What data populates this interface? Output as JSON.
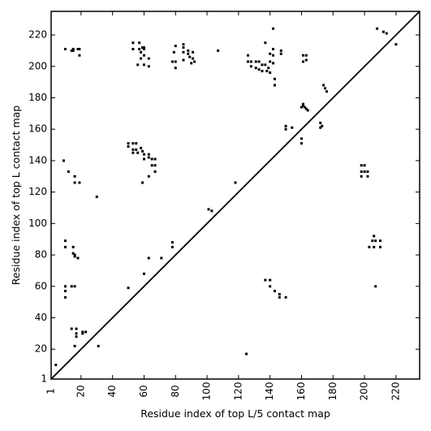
{
  "chart_data": {
    "type": "scatter",
    "title": "",
    "xlabel": "Residue index of top L/5 contact map",
    "ylabel": "Residue index of top L contact map",
    "xlim": [
      1,
      235
    ],
    "ylim": [
      1,
      235
    ],
    "x_ticks": [
      1,
      20,
      40,
      60,
      80,
      100,
      120,
      140,
      160,
      180,
      200,
      220
    ],
    "y_ticks": [
      1,
      20,
      40,
      60,
      80,
      100,
      120,
      140,
      160,
      180,
      200,
      220
    ],
    "grid": false,
    "legend": "none",
    "marker_color": "#000000",
    "diagonal": [
      [
        1,
        1
      ],
      [
        235,
        235
      ]
    ],
    "series": [
      {
        "values": [
          [
            10,
            211
          ],
          [
            14,
            210
          ],
          [
            15,
            210
          ],
          [
            15,
            211
          ],
          [
            18,
            211
          ],
          [
            19,
            207
          ],
          [
            19,
            211
          ],
          [
            53,
            215
          ],
          [
            53,
            211
          ],
          [
            57,
            215
          ],
          [
            57,
            211
          ],
          [
            59,
            212
          ],
          [
            60,
            212
          ],
          [
            60,
            211
          ],
          [
            58,
            209
          ],
          [
            58,
            205
          ],
          [
            60,
            207
          ],
          [
            56,
            201
          ],
          [
            60,
            201
          ],
          [
            63,
            205
          ],
          [
            63,
            200
          ],
          [
            78,
            203
          ],
          [
            80,
            203
          ],
          [
            79,
            209
          ],
          [
            80,
            213
          ],
          [
            80,
            199
          ],
          [
            85,
            214
          ],
          [
            85,
            212
          ],
          [
            85,
            209
          ],
          [
            85,
            204
          ],
          [
            88,
            210
          ],
          [
            88,
            208
          ],
          [
            89,
            206
          ],
          [
            91,
            209
          ],
          [
            91,
            205
          ],
          [
            92,
            203
          ],
          [
            90,
            202
          ],
          [
            107,
            210
          ],
          [
            126,
            207
          ],
          [
            126,
            203
          ],
          [
            128,
            203
          ],
          [
            128,
            200
          ],
          [
            131,
            203
          ],
          [
            131,
            199
          ],
          [
            133,
            203
          ],
          [
            133,
            198
          ],
          [
            135,
            201
          ],
          [
            135,
            197
          ],
          [
            137,
            215
          ],
          [
            137,
            201
          ],
          [
            138,
            197
          ],
          [
            139,
            199
          ],
          [
            140,
            208
          ],
          [
            140,
            203
          ],
          [
            140,
            196
          ],
          [
            142,
            224
          ],
          [
            142,
            211
          ],
          [
            142,
            207
          ],
          [
            142,
            202
          ],
          [
            143,
            192
          ],
          [
            143,
            188
          ],
          [
            147,
            210
          ],
          [
            147,
            208
          ],
          [
            161,
            207
          ],
          [
            161,
            203
          ],
          [
            163,
            207
          ],
          [
            163,
            204
          ],
          [
            150,
            162
          ],
          [
            150,
            160
          ],
          [
            154,
            161
          ],
          [
            160,
            174
          ],
          [
            161,
            176
          ],
          [
            161,
            175
          ],
          [
            162,
            174
          ],
          [
            163,
            173
          ],
          [
            164,
            172
          ],
          [
            174,
            188
          ],
          [
            175,
            186
          ],
          [
            176,
            184
          ],
          [
            172,
            164
          ],
          [
            173,
            162
          ],
          [
            172,
            161
          ],
          [
            160,
            154
          ],
          [
            160,
            151
          ],
          [
            208,
            224
          ],
          [
            212,
            222
          ],
          [
            214,
            221
          ],
          [
            220,
            214
          ],
          [
            50,
            151
          ],
          [
            50,
            149
          ],
          [
            53,
            151
          ],
          [
            53,
            147
          ],
          [
            53,
            145
          ],
          [
            55,
            151
          ],
          [
            55,
            147
          ],
          [
            56,
            145
          ],
          [
            58,
            148
          ],
          [
            59,
            146
          ],
          [
            60,
            144
          ],
          [
            60,
            141
          ],
          [
            63,
            144
          ],
          [
            63,
            142
          ],
          [
            65,
            141
          ],
          [
            65,
            137
          ],
          [
            67,
            141
          ],
          [
            67,
            137
          ],
          [
            67,
            133
          ],
          [
            63,
            130
          ],
          [
            59,
            126
          ],
          [
            9,
            140
          ],
          [
            12,
            133
          ],
          [
            16,
            130
          ],
          [
            16,
            126
          ],
          [
            19,
            126
          ],
          [
            30,
            117
          ],
          [
            118,
            126
          ],
          [
            101,
            109
          ],
          [
            103,
            108
          ],
          [
            198,
            137
          ],
          [
            198,
            133
          ],
          [
            198,
            130
          ],
          [
            200,
            137
          ],
          [
            200,
            133
          ],
          [
            202,
            130
          ],
          [
            202,
            133
          ],
          [
            205,
            89
          ],
          [
            206,
            92
          ],
          [
            207,
            89
          ],
          [
            210,
            89
          ],
          [
            203,
            85
          ],
          [
            206,
            85
          ],
          [
            210,
            85
          ],
          [
            10,
            89
          ],
          [
            10,
            85
          ],
          [
            15,
            85
          ],
          [
            15,
            81
          ],
          [
            16,
            80
          ],
          [
            16,
            79
          ],
          [
            18,
            78
          ],
          [
            78,
            88
          ],
          [
            78,
            85
          ],
          [
            63,
            78
          ],
          [
            71,
            78
          ],
          [
            60,
            68
          ],
          [
            50,
            59
          ],
          [
            10,
            60
          ],
          [
            10,
            57
          ],
          [
            10,
            53
          ],
          [
            14,
            60
          ],
          [
            16,
            60
          ],
          [
            137,
            64
          ],
          [
            140,
            64
          ],
          [
            140,
            60
          ],
          [
            143,
            57
          ],
          [
            146,
            55
          ],
          [
            146,
            53
          ],
          [
            150,
            53
          ],
          [
            207,
            60
          ],
          [
            14,
            33
          ],
          [
            17,
            33
          ],
          [
            17,
            30
          ],
          [
            17,
            28
          ],
          [
            21,
            31
          ],
          [
            23,
            31
          ],
          [
            21,
            30
          ],
          [
            16,
            22
          ],
          [
            31,
            22
          ],
          [
            4,
            10
          ],
          [
            125,
            17
          ]
        ]
      }
    ]
  }
}
